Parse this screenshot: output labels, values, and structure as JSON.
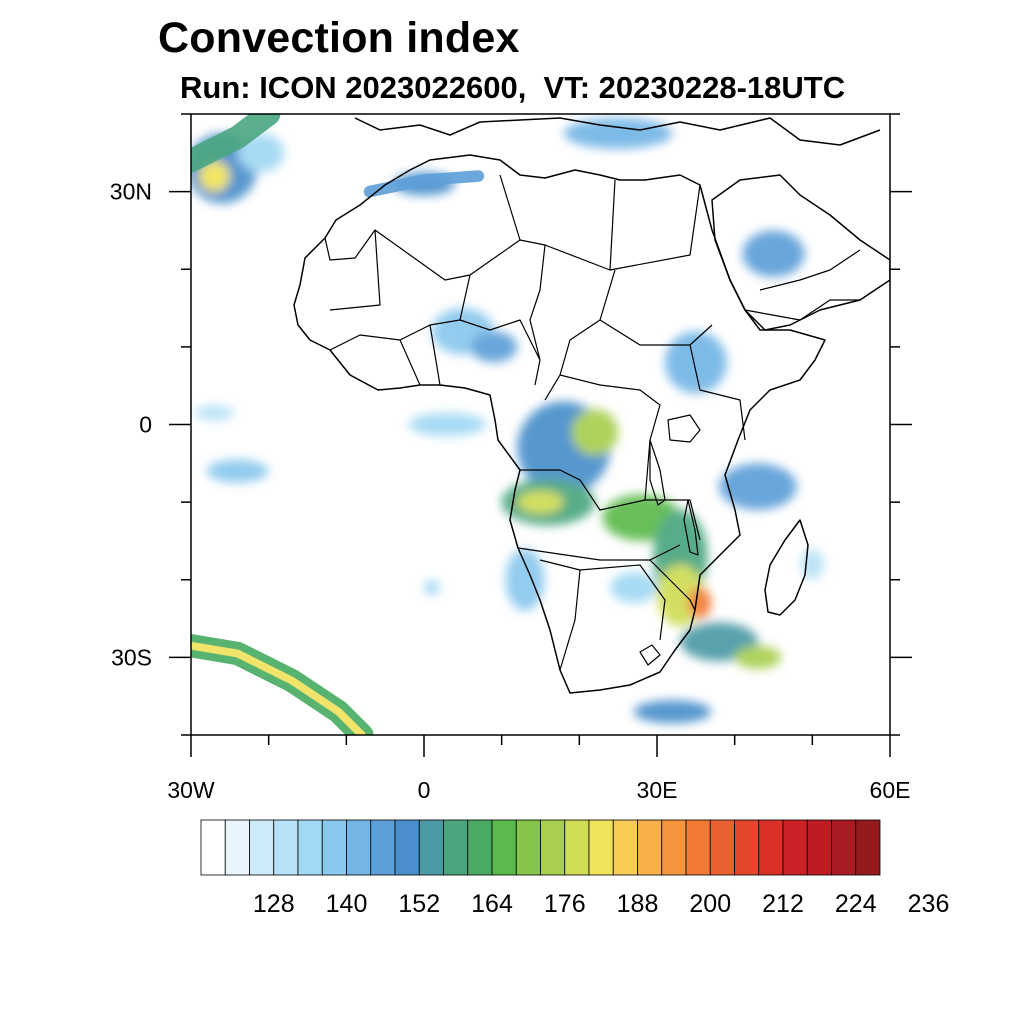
{
  "header": {
    "title": "Convection index",
    "subtitle": "Run: ICON 2023022600,  VT: 20230228-18UTC"
  },
  "map": {
    "region": "Africa",
    "projection": "cylindrical equidistant",
    "lon_range": [
      -30,
      60
    ],
    "lat_range": [
      -40,
      40
    ],
    "land_fill": "#ffffff",
    "border_color": "#000000",
    "x_ticks": [
      {
        "lon": -30,
        "label": "30W"
      },
      {
        "lon": 0,
        "label": "0"
      },
      {
        "lon": 30,
        "label": "30E"
      },
      {
        "lon": 60,
        "label": "60E"
      }
    ],
    "y_ticks": [
      {
        "lat": 30,
        "label": "30N"
      },
      {
        "lat": 0,
        "label": "0"
      },
      {
        "lat": -30,
        "label": "30S"
      }
    ]
  },
  "colorbar": {
    "colors": [
      "#ffffff",
      "#e8f5fc",
      "#cdeaf8",
      "#b7e1f6",
      "#a1d8f3",
      "#8ac8ed",
      "#73b6e6",
      "#5d9fd8",
      "#4a8fcb",
      "#4c9aa6",
      "#4aa67f",
      "#48ab61",
      "#5bba4c",
      "#86c54c",
      "#a8cf4f",
      "#cfdd55",
      "#efe35a",
      "#f8cc55",
      "#f7b04a",
      "#f5963e",
      "#f17b35",
      "#ea5f2f",
      "#e2472b",
      "#d93028",
      "#cc2227",
      "#bd1c25",
      "#a91a22",
      "#931a1d"
    ],
    "labels": [
      "128",
      "140",
      "152",
      "164",
      "176",
      "188",
      "200",
      "212",
      "224",
      "236"
    ]
  },
  "convection_areas": [
    {
      "lon": -26,
      "lat": 33,
      "rx": 4.5,
      "ry": 4.5,
      "level": 8
    },
    {
      "lon": -27,
      "lat": 32,
      "rx": 2.0,
      "ry": 2.0,
      "level": 16
    },
    {
      "lon": -21,
      "lat": 35,
      "rx": 3.0,
      "ry": 2.5,
      "level": 4
    },
    {
      "lon": 0,
      "lat": 31,
      "rx": 4.0,
      "ry": 1.5,
      "level": 8
    },
    {
      "lon": 25,
      "lat": 37.5,
      "rx": 7.0,
      "ry": 2.0,
      "level": 6
    },
    {
      "lon": 45,
      "lat": 22,
      "rx": 4.0,
      "ry": 3.0,
      "level": 7
    },
    {
      "lon": 5,
      "lat": 12,
      "rx": 4.0,
      "ry": 3.0,
      "level": 5
    },
    {
      "lon": 9,
      "lat": 10,
      "rx": 3.0,
      "ry": 2.0,
      "level": 7
    },
    {
      "lon": 35,
      "lat": 8,
      "rx": 4.0,
      "ry": 4.0,
      "level": 6
    },
    {
      "lon": 3,
      "lat": 0,
      "rx": 5.0,
      "ry": 1.5,
      "level": 4
    },
    {
      "lon": -27,
      "lat": 1.5,
      "rx": 2.5,
      "ry": 1.0,
      "level": 3
    },
    {
      "lon": -24,
      "lat": -6,
      "rx": 4.0,
      "ry": 1.5,
      "level": 5
    },
    {
      "lon": 18,
      "lat": -3,
      "rx": 6.0,
      "ry": 6.0,
      "level": 8
    },
    {
      "lon": 22,
      "lat": -1,
      "rx": 3.0,
      "ry": 3.0,
      "level": 14
    },
    {
      "lon": 16,
      "lat": -10,
      "rx": 6.0,
      "ry": 3.0,
      "level": 10
    },
    {
      "lon": 15,
      "lat": -10,
      "rx": 3.0,
      "ry": 1.5,
      "level": 15
    },
    {
      "lon": 28,
      "lat": -12,
      "rx": 5.0,
      "ry": 3.0,
      "level": 12
    },
    {
      "lon": 33,
      "lat": -17,
      "rx": 3.5,
      "ry": 6.0,
      "level": 10
    },
    {
      "lon": 33,
      "lat": -22,
      "rx": 3.0,
      "ry": 4.0,
      "level": 15
    },
    {
      "lon": 35.5,
      "lat": -23,
      "rx": 1.5,
      "ry": 2.0,
      "level": 20
    },
    {
      "lon": 38,
      "lat": -28,
      "rx": 5.0,
      "ry": 2.5,
      "level": 9
    },
    {
      "lon": 43,
      "lat": -30,
      "rx": 3.0,
      "ry": 1.5,
      "level": 14
    },
    {
      "lon": 43,
      "lat": -8,
      "rx": 5.0,
      "ry": 3.0,
      "level": 7
    },
    {
      "lon": 13,
      "lat": -20,
      "rx": 2.5,
      "ry": 4.0,
      "level": 5
    },
    {
      "lon": 27,
      "lat": -21,
      "rx": 3.0,
      "ry": 2.0,
      "level": 4
    },
    {
      "lon": 32,
      "lat": -37,
      "rx": 5.0,
      "ry": 1.5,
      "level": 8
    },
    {
      "lon": 1,
      "lat": -21,
      "rx": 1.0,
      "ry": 1.0,
      "level": 4
    },
    {
      "lon": 50,
      "lat": -18,
      "rx": 1.5,
      "ry": 2.0,
      "level": 3
    }
  ],
  "convection_bands": [
    {
      "points": [
        [
          -30,
          -28.5
        ],
        [
          -24,
          -29.5
        ],
        [
          -17,
          -33
        ],
        [
          -11,
          -37
        ],
        [
          -8,
          -40
        ]
      ],
      "level": 11,
      "width": 3.0
    },
    {
      "points": [
        [
          -30,
          -28.5
        ],
        [
          -24,
          -29.5
        ],
        [
          -17,
          -33
        ],
        [
          -11,
          -37
        ],
        [
          -8,
          -40
        ]
      ],
      "level": 16,
      "width": 1.0
    },
    {
      "points": [
        [
          -30,
          34
        ],
        [
          -24,
          37
        ],
        [
          -20,
          40
        ]
      ],
      "level": 10,
      "width": 3.0
    },
    {
      "points": [
        [
          -7,
          30
        ],
        [
          0,
          31.5
        ],
        [
          7,
          32
        ]
      ],
      "level": 7,
      "width": 1.5
    }
  ]
}
